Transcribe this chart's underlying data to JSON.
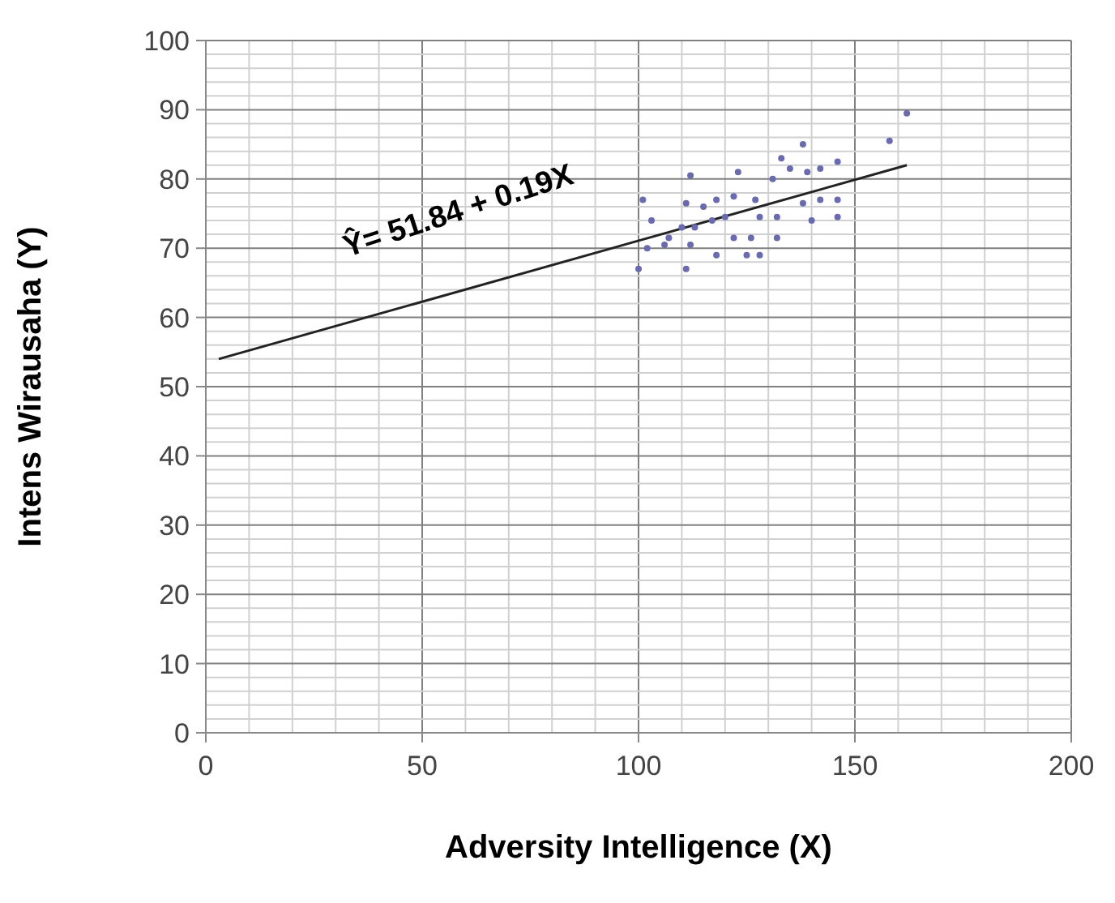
{
  "chart_data": {
    "type": "scatter",
    "xlabel": "Adversity Intelligence (X)",
    "ylabel": "Intens Wirausaha (Y)",
    "xlim": [
      0,
      200
    ],
    "ylim": [
      0,
      100
    ],
    "xticks": [
      0,
      {
        "value": 10,
        "label": null
      },
      {
        "value": 20,
        "label": null
      },
      {
        "value": 30,
        "label": null
      },
      {
        "value": 40,
        "label": null
      },
      50,
      {
        "value": 60,
        "label": null
      },
      {
        "value": 70,
        "label": null
      },
      {
        "value": 80,
        "label": null
      },
      {
        "value": 90,
        "label": null
      },
      100,
      {
        "value": 110,
        "label": null
      },
      {
        "value": 120,
        "label": null
      },
      {
        "value": 130,
        "label": null
      },
      {
        "value": 140,
        "label": null
      },
      150,
      {
        "value": 160,
        "label": null
      },
      {
        "value": 170,
        "label": null
      },
      {
        "value": 180,
        "label": null
      },
      {
        "value": 190,
        "label": null
      },
      200
    ],
    "yticks": [
      0,
      {
        "value": 2,
        "label": null
      },
      {
        "value": 4,
        "label": null
      },
      {
        "value": 6,
        "label": null
      },
      {
        "value": 8,
        "label": null
      },
      10,
      {
        "value": 12,
        "label": null
      },
      {
        "value": 14,
        "label": null
      },
      {
        "value": 16,
        "label": null
      },
      {
        "value": 18,
        "label": null
      },
      20,
      {
        "value": 22,
        "label": null
      },
      {
        "value": 24,
        "label": null
      },
      {
        "value": 26,
        "label": null
      },
      {
        "value": 28,
        "label": null
      },
      30,
      {
        "value": 32,
        "label": null
      },
      {
        "value": 34,
        "label": null
      },
      {
        "value": 36,
        "label": null
      },
      {
        "value": 38,
        "label": null
      },
      40,
      {
        "value": 42,
        "label": null
      },
      {
        "value": 44,
        "label": null
      },
      {
        "value": 46,
        "label": null
      },
      {
        "value": 48,
        "label": null
      },
      50,
      {
        "value": 52,
        "label": null
      },
      {
        "value": 54,
        "label": null
      },
      {
        "value": 56,
        "label": null
      },
      {
        "value": 58,
        "label": null
      },
      60,
      {
        "value": 62,
        "label": null
      },
      {
        "value": 64,
        "label": null
      },
      {
        "value": 66,
        "label": null
      },
      {
        "value": 68,
        "label": null
      },
      70,
      {
        "value": 72,
        "label": null
      },
      {
        "value": 74,
        "label": null
      },
      {
        "value": 76,
        "label": null
      },
      {
        "value": 78,
        "label": null
      },
      80,
      {
        "value": 82,
        "label": null
      },
      {
        "value": 84,
        "label": null
      },
      {
        "value": 86,
        "label": null
      },
      {
        "value": 88,
        "label": null
      },
      90,
      {
        "value": 92,
        "label": null
      },
      {
        "value": 94,
        "label": null
      },
      {
        "value": 96,
        "label": null
      },
      {
        "value": 98,
        "label": null
      },
      100
    ],
    "grid": true,
    "marker": "circle",
    "annotations": [
      "Ŷ= 51.84 + 0.19X"
    ],
    "series": [
      {
        "color": "#6a6aae",
        "x": [
          162,
          158,
          101,
          103,
          100,
          102,
          112,
          111,
          110,
          112,
          111,
          118,
          117,
          118,
          123,
          122,
          122,
          125,
          127,
          128,
          128,
          131,
          132,
          133,
          135,
          138,
          139,
          138,
          140,
          142,
          146,
          146,
          146,
          142,
          120,
          113,
          132,
          126,
          115,
          107,
          106
        ],
        "values": [
          89.5,
          85.5,
          77,
          74,
          67,
          70,
          80.5,
          76.5,
          73,
          70.5,
          67,
          77,
          74,
          69,
          81,
          77.5,
          71.5,
          69,
          77,
          74.5,
          69,
          80,
          74.5,
          83,
          81.5,
          85,
          81,
          76.5,
          74,
          81.5,
          82.5,
          77,
          74.5,
          77,
          74.5,
          73,
          71.5,
          71.5,
          76,
          71.5,
          70.5
        ]
      },
      {
        "type": "line",
        "color": "#222222",
        "line_style": "solid",
        "marker": "none",
        "x": [
          3,
          162
        ],
        "values": [
          54,
          82
        ]
      }
    ]
  }
}
